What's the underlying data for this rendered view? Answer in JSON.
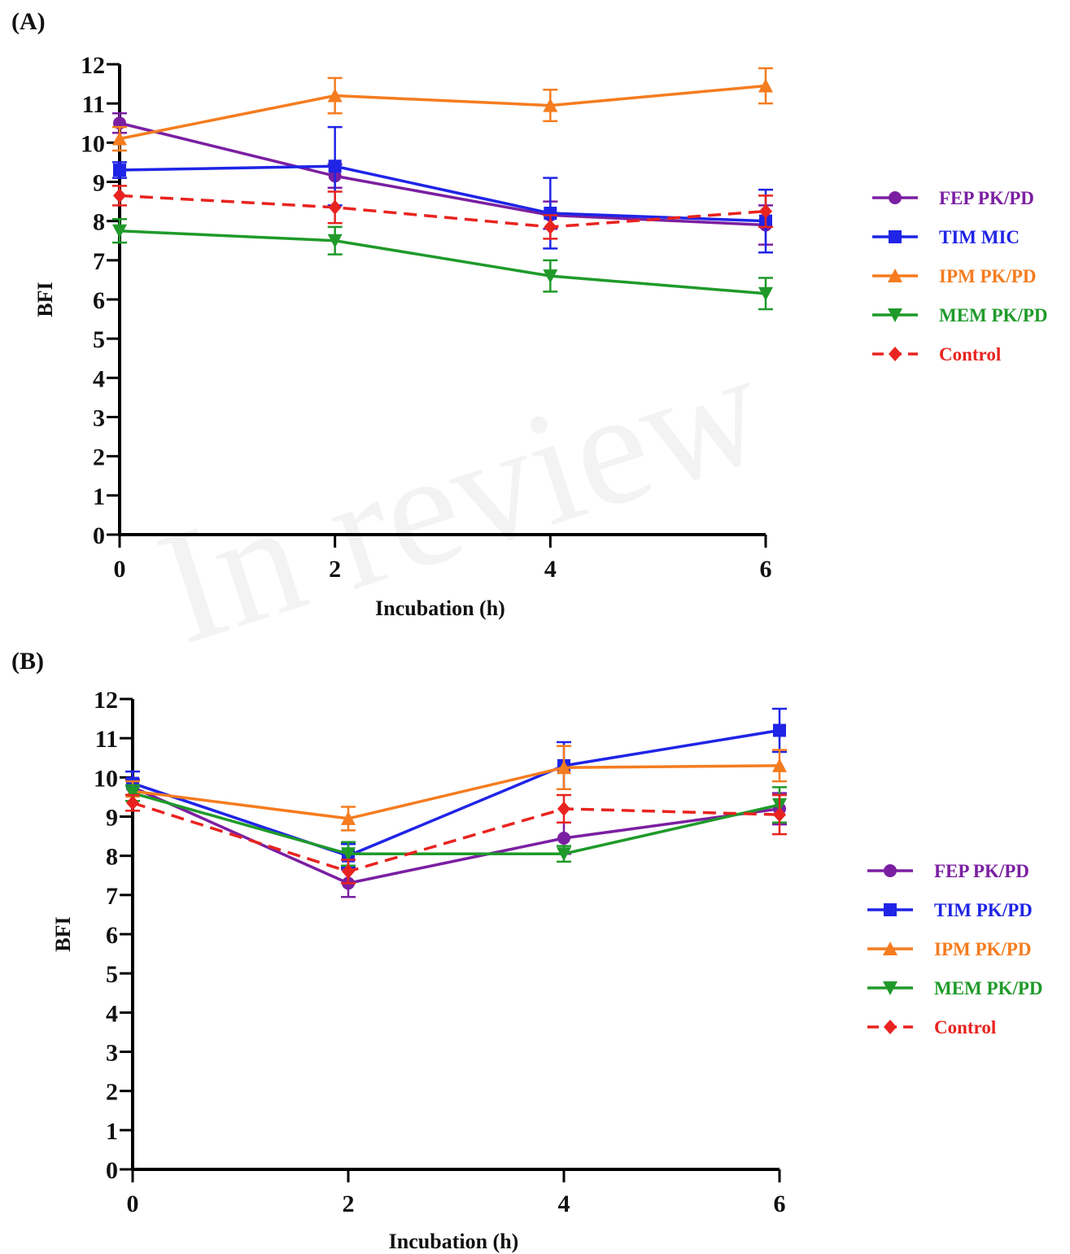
{
  "watermark": "In review",
  "chart_data": [
    {
      "panel_label": "(A)",
      "type": "line",
      "xlabel": "Incubation (h)",
      "ylabel": "BFI",
      "x": [
        0,
        2,
        4,
        6
      ],
      "xticks": [
        "0",
        "2",
        "4",
        "6"
      ],
      "ylim": [
        0,
        12
      ],
      "yticks": [
        "0",
        "1",
        "2",
        "3",
        "4",
        "5",
        "6",
        "7",
        "8",
        "9",
        "10",
        "11",
        "12"
      ],
      "grid": false,
      "legend_position": "right",
      "series": [
        {
          "name": "FEP PK/PD",
          "color": "#7b1fa2",
          "marker": "circle",
          "dash": false,
          "values": [
            10.5,
            9.15,
            8.15,
            7.9
          ],
          "errors": [
            0.25,
            0.3,
            0.35,
            0.5
          ]
        },
        {
          "name": "TIM MIC",
          "color": "#1f24e6",
          "marker": "square",
          "dash": false,
          "values": [
            9.3,
            9.4,
            8.2,
            8.0
          ],
          "errors": [
            0.2,
            1.0,
            0.9,
            0.8
          ]
        },
        {
          "name": "IPM PK/PD",
          "color": "#f57c1f",
          "marker": "triangle-up",
          "dash": false,
          "values": [
            10.1,
            11.2,
            10.95,
            11.45
          ],
          "errors": [
            0.3,
            0.45,
            0.4,
            0.45
          ]
        },
        {
          "name": "MEM PK/PD",
          "color": "#1f9a2a",
          "marker": "triangle-down",
          "dash": false,
          "values": [
            7.75,
            7.5,
            6.6,
            6.15
          ],
          "errors": [
            0.3,
            0.35,
            0.4,
            0.4
          ]
        },
        {
          "name": "Control",
          "color": "#e8231f",
          "marker": "diamond",
          "dash": true,
          "values": [
            8.65,
            8.35,
            7.85,
            8.25
          ],
          "errors": [
            0.25,
            0.4,
            0.3,
            0.4
          ]
        }
      ]
    },
    {
      "panel_label": "(B)",
      "type": "line",
      "xlabel": "Incubation (h)",
      "ylabel": "BFI",
      "x": [
        0,
        2,
        4,
        6
      ],
      "xticks": [
        "0",
        "2",
        "4",
        "6"
      ],
      "ylim": [
        0,
        12
      ],
      "yticks": [
        "0",
        "1",
        "2",
        "3",
        "4",
        "5",
        "6",
        "7",
        "8",
        "9",
        "10",
        "11",
        "12"
      ],
      "grid": false,
      "legend_position": "right",
      "series": [
        {
          "name": "FEP PK/PD",
          "color": "#7b1fa2",
          "marker": "circle",
          "dash": false,
          "values": [
            9.75,
            7.3,
            8.45,
            9.2
          ],
          "errors": [
            0.2,
            0.35,
            0.4,
            0.4
          ]
        },
        {
          "name": "TIM PK/PD",
          "color": "#1f24e6",
          "marker": "square",
          "dash": false,
          "values": [
            9.85,
            8.0,
            10.3,
            11.2
          ],
          "errors": [
            0.3,
            0.3,
            0.6,
            0.55
          ]
        },
        {
          "name": "IPM PK/PD",
          "color": "#f57c1f",
          "marker": "triangle-up",
          "dash": false,
          "values": [
            9.65,
            8.95,
            10.25,
            10.3
          ],
          "errors": [
            0.25,
            0.3,
            0.55,
            0.4
          ]
        },
        {
          "name": "MEM PK/PD",
          "color": "#1f9a2a",
          "marker": "triangle-down",
          "dash": false,
          "values": [
            9.6,
            8.05,
            8.05,
            9.3
          ],
          "errors": [
            0.2,
            0.3,
            0.2,
            0.45
          ]
        },
        {
          "name": "Control",
          "color": "#e8231f",
          "marker": "diamond",
          "dash": true,
          "values": [
            9.35,
            7.6,
            9.2,
            9.05
          ],
          "errors": [
            0.2,
            0.3,
            0.35,
            0.5
          ]
        }
      ]
    }
  ]
}
